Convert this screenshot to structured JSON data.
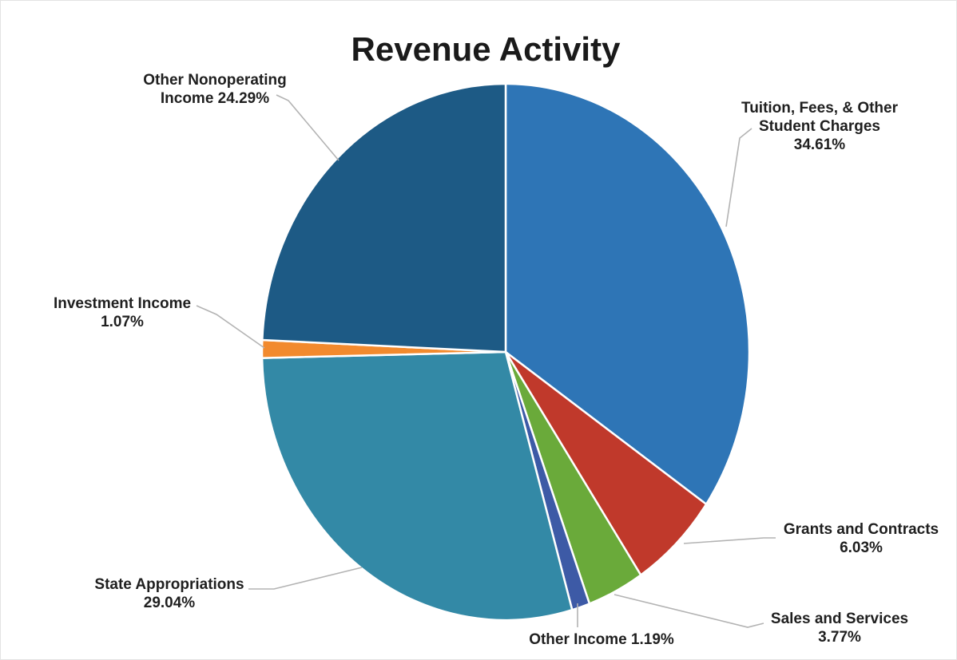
{
  "chart_data": {
    "type": "pie",
    "title": "Revenue Activity",
    "slices": [
      {
        "name": "Tuition, Fees, & Other Student Charges",
        "value": 34.61,
        "label_lines": [
          "Tuition, Fees, & Other",
          "Student Charges",
          "34.61%"
        ],
        "color": "#2e75b6"
      },
      {
        "name": "Grants and Contracts",
        "value": 6.03,
        "label_lines": [
          "Grants and Contracts",
          "6.03%"
        ],
        "color": "#c0392b"
      },
      {
        "name": "Sales and Services",
        "value": 3.77,
        "label_lines": [
          "Sales and Services",
          "3.77%"
        ],
        "color": "#6aaa3a"
      },
      {
        "name": "Other Income",
        "value": 1.19,
        "label_lines": [
          "Other Income 1.19%"
        ],
        "color": "#3d5aa6"
      },
      {
        "name": "State Appropriations",
        "value": 29.04,
        "label_lines": [
          "State Appropriations",
          "29.04%"
        ],
        "color": "#3389a6"
      },
      {
        "name": "Investment Income",
        "value": 1.07,
        "label_lines": [
          "Investment Income",
          "1.07%"
        ],
        "color": "#f28a2e"
      },
      {
        "name": "Other Nonoperating Income",
        "value": 24.29,
        "label_lines": [
          "Other Nonoperating",
          "Income 24.29%"
        ],
        "color": "#1d5a85"
      }
    ]
  }
}
